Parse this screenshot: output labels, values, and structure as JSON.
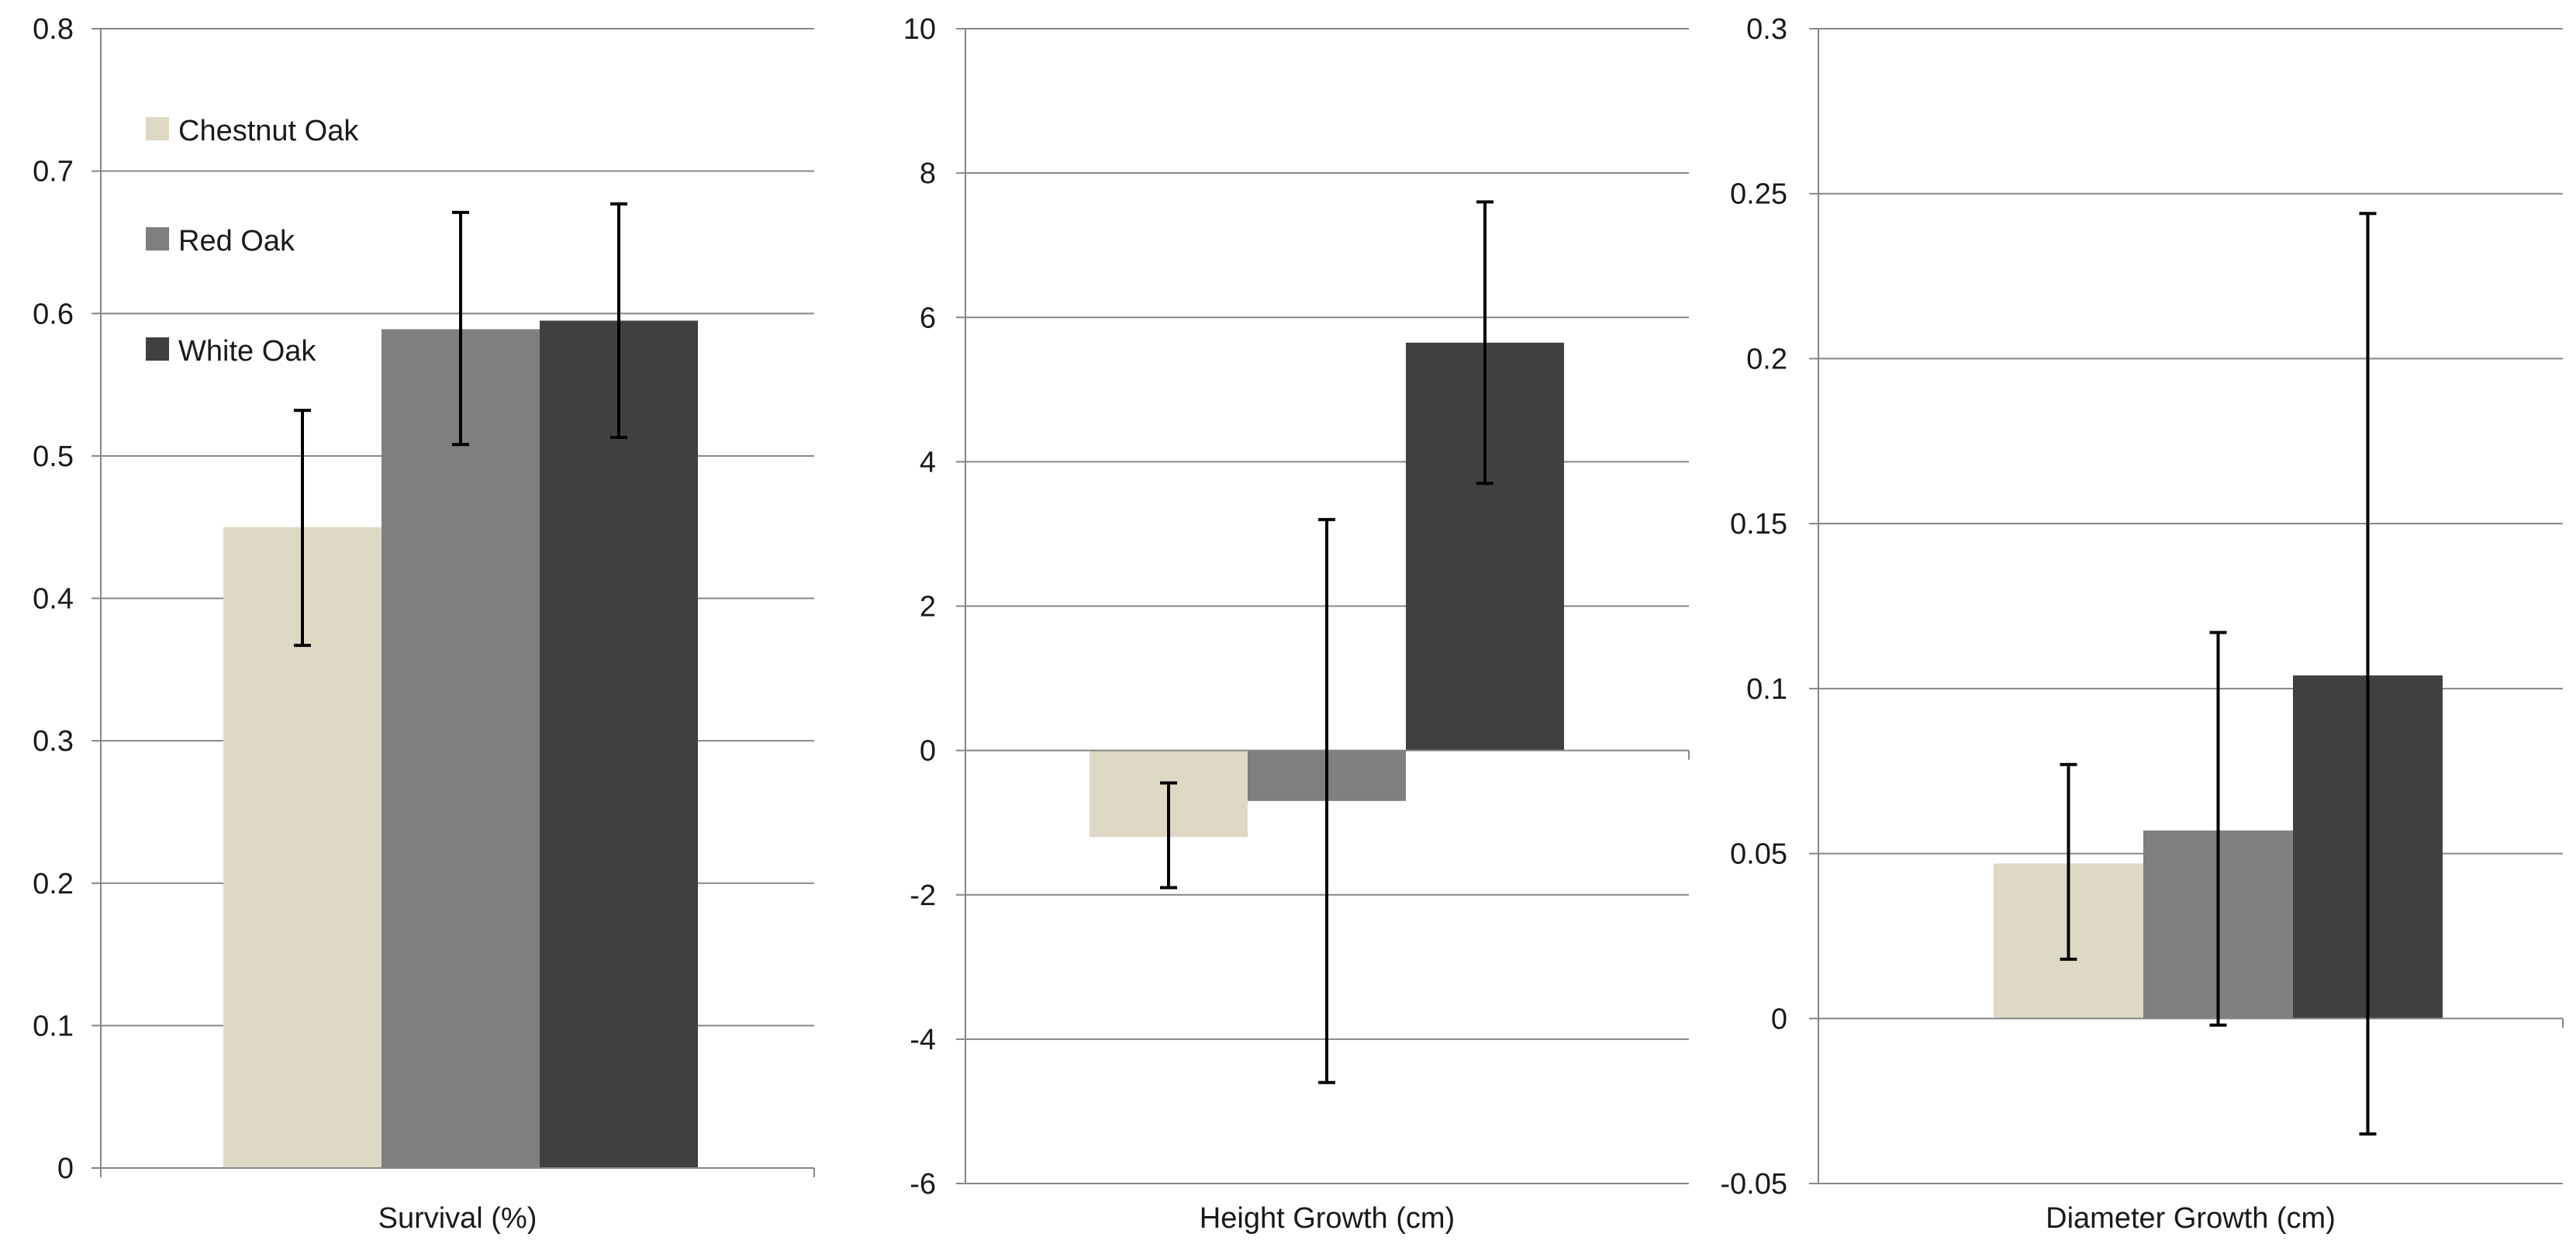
{
  "colors": {
    "chestnut_oak": "#ddd9c4",
    "red_oak": "#7f7f7f",
    "white_oak": "#404040",
    "gridline": "#868686",
    "axis": "#868686",
    "error_bar": "#000000"
  },
  "legend": [
    {
      "label": "Chestnut Oak",
      "color_key": "chestnut_oak"
    },
    {
      "label": "Red Oak",
      "color_key": "red_oak"
    },
    {
      "label": "White Oak",
      "color_key": "white_oak"
    }
  ],
  "chart_data": [
    {
      "type": "bar",
      "title": "",
      "xlabel": "Survival (%)",
      "ylabel": "",
      "ylim": [
        0,
        0.8
      ],
      "yticks": [
        0,
        0.1,
        0.2,
        0.3,
        0.4,
        0.5,
        0.6,
        0.7,
        0.8
      ],
      "ytick_labels": [
        "0",
        "0.1",
        "0.2",
        "0.3",
        "0.4",
        "0.5",
        "0.6",
        "0.7",
        "0.8"
      ],
      "grid": true,
      "legend_position": "top-left",
      "series": [
        {
          "name": "Chestnut Oak",
          "value": 0.45,
          "error_low": 0.367,
          "error_high": 0.532
        },
        {
          "name": "Red Oak",
          "value": 0.589,
          "error_low": 0.508,
          "error_high": 0.671
        },
        {
          "name": "White Oak",
          "value": 0.595,
          "error_low": 0.513,
          "error_high": 0.677
        }
      ]
    },
    {
      "type": "bar",
      "title": "",
      "xlabel": "Height Growth (cm)",
      "ylabel": "",
      "ylim": [
        -6,
        10
      ],
      "yticks": [
        -6,
        -4,
        -2,
        0,
        2,
        4,
        6,
        8,
        10
      ],
      "ytick_labels": [
        "-6",
        "-4",
        "-2",
        "0",
        "2",
        "4",
        "6",
        "8",
        "10"
      ],
      "grid": true,
      "series": [
        {
          "name": "Chestnut Oak",
          "value": -1.2,
          "error_low": -1.9,
          "error_high": -0.45
        },
        {
          "name": "Red Oak",
          "value": -0.7,
          "error_low": -4.6,
          "error_high": 3.2
        },
        {
          "name": "White Oak",
          "value": 5.65,
          "error_low": 3.7,
          "error_high": 7.6
        }
      ]
    },
    {
      "type": "bar",
      "title": "",
      "xlabel": "Diameter Growth (cm)",
      "ylabel": "",
      "ylim": [
        -0.05,
        0.3
      ],
      "yticks": [
        -0.05,
        0,
        0.05,
        0.1,
        0.15,
        0.2,
        0.25,
        0.3
      ],
      "ytick_labels": [
        "-0.05",
        "0",
        "0.05",
        "0.1",
        "0.15",
        "0.2",
        "0.25",
        "0.3"
      ],
      "grid": true,
      "series": [
        {
          "name": "Chestnut Oak",
          "value": 0.047,
          "error_low": 0.018,
          "error_high": 0.077
        },
        {
          "name": "Red Oak",
          "value": 0.057,
          "error_low": -0.002,
          "error_high": 0.117
        },
        {
          "name": "White Oak",
          "value": 0.104,
          "error_low": -0.035,
          "error_high": 0.244
        }
      ]
    }
  ]
}
